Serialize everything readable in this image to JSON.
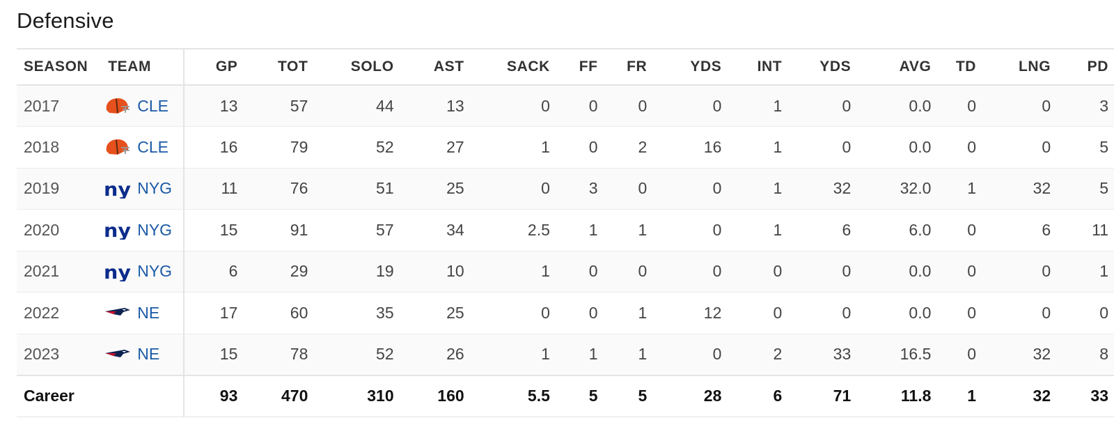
{
  "section_title": "Defensive",
  "headers": {
    "season": "SEASON",
    "team": "TEAM",
    "gp": "GP",
    "tot": "TOT",
    "solo": "SOLO",
    "ast": "AST",
    "sack": "SACK",
    "ff": "FF",
    "fr": "FR",
    "yds1": "YDS",
    "int": "INT",
    "yds2": "YDS",
    "avg": "AVG",
    "td": "TD",
    "lng": "LNG",
    "pd": "PD"
  },
  "rows": [
    {
      "season": "2017",
      "team": "CLE",
      "logo": "browns-helmet-icon",
      "gp": "13",
      "tot": "57",
      "solo": "44",
      "ast": "13",
      "sack": "0",
      "ff": "0",
      "fr": "0",
      "yds1": "0",
      "int": "1",
      "yds2": "0",
      "avg": "0.0",
      "td": "0",
      "lng": "0",
      "pd": "3"
    },
    {
      "season": "2018",
      "team": "CLE",
      "logo": "browns-helmet-icon",
      "gp": "16",
      "tot": "79",
      "solo": "52",
      "ast": "27",
      "sack": "1",
      "ff": "0",
      "fr": "2",
      "yds1": "16",
      "int": "1",
      "yds2": "0",
      "avg": "0.0",
      "td": "0",
      "lng": "0",
      "pd": "5"
    },
    {
      "season": "2019",
      "team": "NYG",
      "logo": "giants-ny-icon",
      "gp": "11",
      "tot": "76",
      "solo": "51",
      "ast": "25",
      "sack": "0",
      "ff": "3",
      "fr": "0",
      "yds1": "0",
      "int": "1",
      "yds2": "32",
      "avg": "32.0",
      "td": "1",
      "lng": "32",
      "pd": "5"
    },
    {
      "season": "2020",
      "team": "NYG",
      "logo": "giants-ny-icon",
      "gp": "15",
      "tot": "91",
      "solo": "57",
      "ast": "34",
      "sack": "2.5",
      "ff": "1",
      "fr": "1",
      "yds1": "0",
      "int": "1",
      "yds2": "6",
      "avg": "6.0",
      "td": "0",
      "lng": "6",
      "pd": "11"
    },
    {
      "season": "2021",
      "team": "NYG",
      "logo": "giants-ny-icon",
      "gp": "6",
      "tot": "29",
      "solo": "19",
      "ast": "10",
      "sack": "1",
      "ff": "0",
      "fr": "0",
      "yds1": "0",
      "int": "0",
      "yds2": "0",
      "avg": "0.0",
      "td": "0",
      "lng": "0",
      "pd": "1"
    },
    {
      "season": "2022",
      "team": "NE",
      "logo": "patriots-flying-elvis-icon",
      "gp": "17",
      "tot": "60",
      "solo": "35",
      "ast": "25",
      "sack": "0",
      "ff": "0",
      "fr": "1",
      "yds1": "12",
      "int": "0",
      "yds2": "0",
      "avg": "0.0",
      "td": "0",
      "lng": "0",
      "pd": "0"
    },
    {
      "season": "2023",
      "team": "NE",
      "logo": "patriots-flying-elvis-icon",
      "gp": "15",
      "tot": "78",
      "solo": "52",
      "ast": "26",
      "sack": "1",
      "ff": "1",
      "fr": "1",
      "yds1": "0",
      "int": "2",
      "yds2": "33",
      "avg": "16.5",
      "td": "0",
      "lng": "32",
      "pd": "8"
    }
  ],
  "career": {
    "label": "Career",
    "gp": "93",
    "tot": "470",
    "solo": "310",
    "ast": "160",
    "sack": "5.5",
    "ff": "5",
    "fr": "5",
    "yds1": "28",
    "int": "6",
    "yds2": "71",
    "avg": "11.8",
    "td": "1",
    "lng": "32",
    "pd": "33"
  },
  "colors": {
    "team_link": "#1b5aa6",
    "browns_orange": "#e6501c",
    "giants_blue": "#0b2c8c",
    "patriots_navy": "#0b2250",
    "patriots_red": "#c8102e"
  }
}
